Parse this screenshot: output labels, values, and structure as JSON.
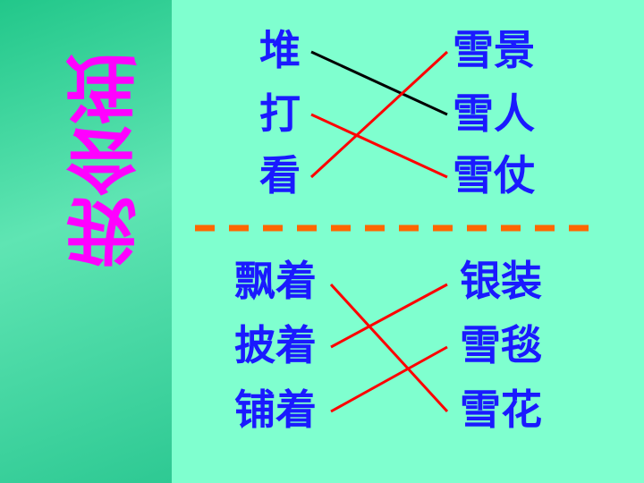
{
  "title": "我会连",
  "section1": {
    "left": [
      "堆",
      "打",
      "看"
    ],
    "right": [
      "雪景",
      "雪人",
      "雪仗"
    ],
    "links": [
      {
        "from": 0,
        "to": 1,
        "color": "#000000"
      },
      {
        "from": 1,
        "to": 2,
        "color": "#ff0000"
      },
      {
        "from": 2,
        "to": 0,
        "color": "#ff0000"
      }
    ]
  },
  "section2": {
    "left": [
      "飘着",
      "披着",
      "铺着"
    ],
    "right": [
      "银装",
      "雪毯",
      "雪花"
    ],
    "links": [
      {
        "from": 0,
        "to": 2,
        "color": "#ff0000"
      },
      {
        "from": 1,
        "to": 0,
        "color": "#ff0000"
      },
      {
        "from": 2,
        "to": 1,
        "color": "#ff0000"
      }
    ]
  },
  "colors": {
    "background": "#7fffcf",
    "title": "#ff00ff",
    "words": "#1a1aff",
    "divider": "#ff6600"
  }
}
